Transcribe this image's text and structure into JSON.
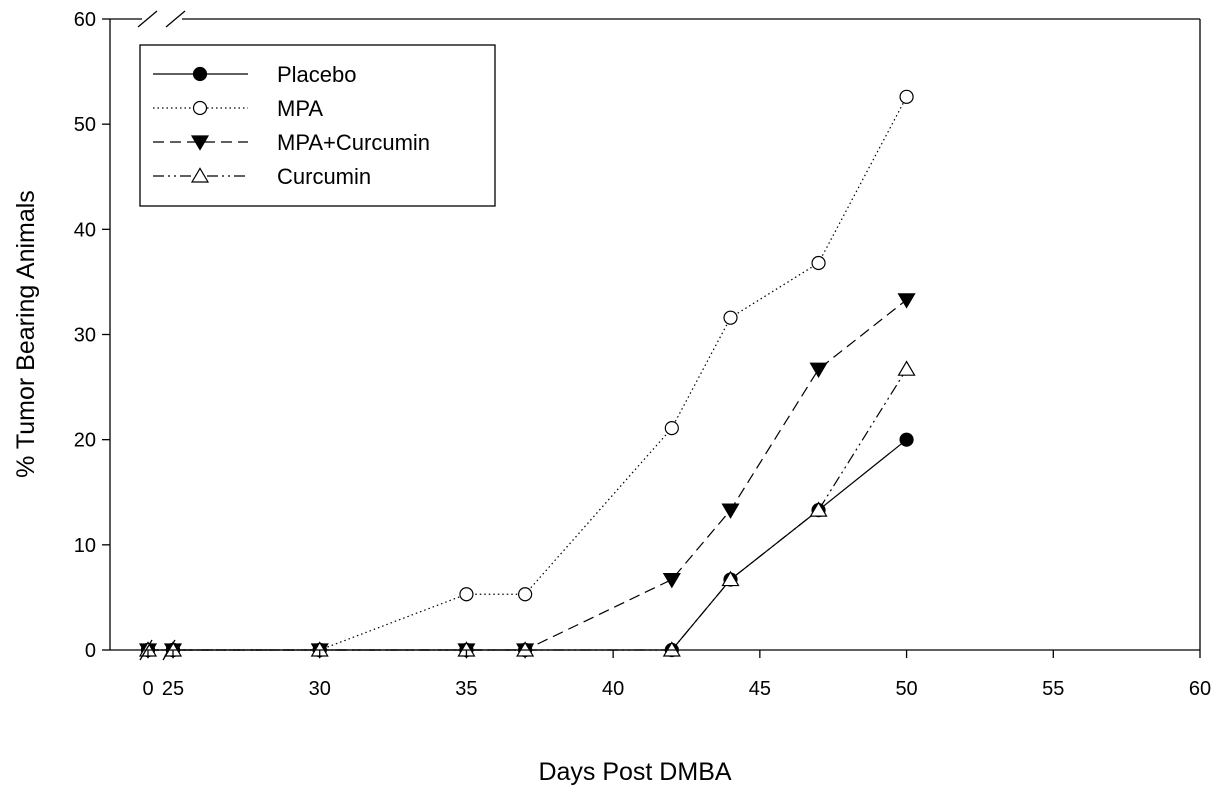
{
  "chart_data": {
    "type": "line",
    "title": "",
    "xlabel": "Days Post DMBA",
    "ylabel": "% Tumor Bearing Animals",
    "x_ticks": [
      "0",
      "25",
      "30",
      "35",
      "40",
      "45",
      "50",
      "55",
      "60"
    ],
    "x_tick_values": [
      0,
      25,
      30,
      35,
      40,
      45,
      50,
      55,
      60
    ],
    "x_break": "between 0 and 25",
    "xlim": [
      0,
      60
    ],
    "y_ticks": [
      "0",
      "10",
      "20",
      "30",
      "40",
      "50",
      "60"
    ],
    "y_tick_values": [
      0,
      10,
      20,
      30,
      40,
      50,
      60
    ],
    "y_break": "top of y axis",
    "ylim": [
      0,
      60
    ],
    "grid": false,
    "legend_position": "top-left",
    "series": [
      {
        "name": "Placebo",
        "line_style": "solid",
        "marker": "filled-circle",
        "x": [
          0,
          25,
          30,
          35,
          37,
          42,
          44,
          47,
          50
        ],
        "y": [
          0,
          0,
          0,
          0,
          0,
          0,
          6.7,
          13.3,
          20
        ]
      },
      {
        "name": "MPA",
        "line_style": "dotted",
        "marker": "open-circle",
        "x": [
          0,
          25,
          30,
          35,
          37,
          42,
          44,
          47,
          50
        ],
        "y": [
          0,
          0,
          0,
          5.3,
          5.3,
          21.1,
          31.6,
          36.8,
          52.6
        ]
      },
      {
        "name": "MPA+Curcumin",
        "line_style": "dashed",
        "marker": "filled-triangle-down",
        "x": [
          0,
          25,
          30,
          35,
          37,
          42,
          44,
          47,
          50
        ],
        "y": [
          0,
          0,
          0,
          0,
          0,
          6.7,
          13.3,
          26.7,
          33.3
        ]
      },
      {
        "name": "Curcumin",
        "line_style": "dash-dot-dot",
        "marker": "open-triangle-up",
        "x": [
          0,
          25,
          30,
          35,
          37,
          42,
          44,
          47,
          50
        ],
        "y": [
          0,
          0,
          0,
          0,
          0,
          0,
          6.7,
          13.3,
          26.7
        ]
      }
    ]
  }
}
